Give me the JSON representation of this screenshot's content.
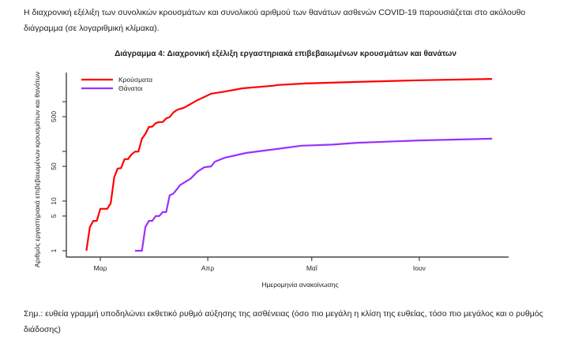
{
  "intro": "Η διαχρονική εξέλιξη των συνολικών κρουσμάτων και συνολικού αριθμού των θανάτων ασθενών COVID-19 παρουσιάζεται στο ακόλουθο διάγραμμα (σε λογαριθμική κλίμακα).",
  "note": "Σημ.: ευθεία γραμμή υποδηλώνει εκθετικό ρυθμό αύξησης της ασθένειας (όσο πιο μεγάλη η κλίση της ευθείας, τόσο πιο μεγάλος και ο ρυθμός διάδοσης)",
  "chart_data": {
    "type": "line",
    "title": "Διάγραμμα 4: Διαχρονική εξέλιξη εργαστηριακά επιβεβαιωμένων κρουσμάτων και θανάτων",
    "xlabel": "Ημερομηνία ανακοίνωσης",
    "ylabel": "Αριθμός εργαστηριακά επιβεβαιωμένων κρουσμάτων και θανάτων",
    "x_unit": "days since 1 Mar",
    "x_ticks": [
      {
        "day": 0,
        "label": "Μαρ"
      },
      {
        "day": 31,
        "label": "Απρ"
      },
      {
        "day": 61,
        "label": "Μαΐ"
      },
      {
        "day": 92,
        "label": "Ιουν"
      }
    ],
    "y_scale": "log",
    "y_ticks": [
      {
        "v": 1,
        "label": "1"
      },
      {
        "v": 5,
        "label": "5"
      },
      {
        "v": 10,
        "label": "10"
      },
      {
        "v": 50,
        "label": "50"
      },
      {
        "v": 100,
        "label": ""
      },
      {
        "v": 500,
        "label": "500"
      },
      {
        "v": 1000,
        "label": ""
      }
    ],
    "legend_position": "top-left",
    "series": [
      {
        "name": "Κρούσματα",
        "color": "#ff0000",
        "x": [
          -4,
          -3,
          -2,
          -1,
          0,
          2,
          3,
          4,
          5,
          6,
          7,
          8,
          9,
          10,
          11,
          12,
          13,
          14,
          15,
          16,
          17,
          18,
          19,
          20,
          21,
          22,
          23,
          24,
          28,
          32,
          36,
          41,
          50,
          51,
          59,
          74,
          92,
          113
        ],
        "y": [
          1,
          3,
          4,
          4,
          7,
          7,
          9,
          30,
          45,
          46,
          70,
          70,
          87,
          99,
          99,
          180,
          225,
          310,
          315,
          370,
          390,
          390,
          460,
          490,
          600,
          680,
          720,
          750,
          1070,
          1450,
          1600,
          1860,
          2100,
          2170,
          2330,
          2500,
          2700,
          2880
        ]
      },
      {
        "name": "Θάνατοι",
        "color": "#9b30ff",
        "x": [
          10,
          12,
          13,
          14,
          15,
          16,
          17,
          18,
          19,
          20,
          21,
          22,
          23,
          26,
          28,
          30,
          32,
          33,
          36,
          42,
          51,
          58,
          67,
          74,
          92,
          113
        ],
        "y": [
          1,
          1,
          3,
          4,
          4,
          5,
          5,
          6,
          6,
          13,
          14,
          17,
          21,
          28,
          39,
          48,
          50,
          62,
          75,
          93,
          112,
          130,
          137,
          149,
          166,
          180
        ]
      }
    ]
  }
}
